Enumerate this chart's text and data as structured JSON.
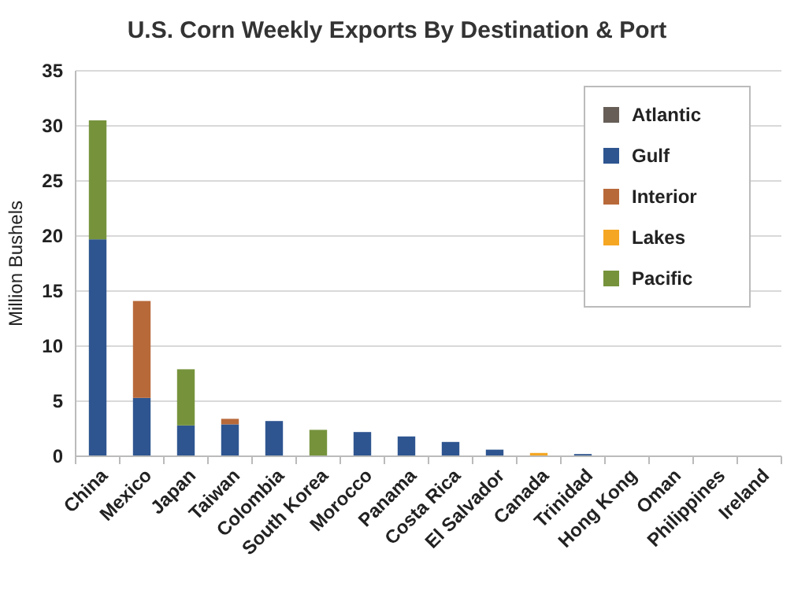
{
  "chart_data": {
    "type": "bar",
    "stacked": true,
    "title": "U.S. Corn Weekly Exports By Destination & Port",
    "ylabel": "Million Bushels",
    "categories": [
      "China",
      "Mexico",
      "Japan",
      "Taiwan",
      "Colombia",
      "South Korea",
      "Morocco",
      "Panama",
      "Costa Rica",
      "El Salvador",
      "Canada",
      "Trinidad",
      "Hong Kong",
      "Oman",
      "Philippines",
      "Ireland"
    ],
    "series": [
      {
        "name": "Atlantic",
        "color": "#665e57",
        "values": [
          0,
          0,
          0,
          0,
          0,
          0,
          0,
          0,
          0,
          0,
          0,
          0,
          0,
          0,
          0,
          0
        ]
      },
      {
        "name": "Gulf",
        "color": "#2e5590",
        "values": [
          19.7,
          5.3,
          2.8,
          2.9,
          3.2,
          0,
          2.2,
          1.8,
          1.3,
          0.6,
          0,
          0.2,
          0,
          0,
          0,
          0
        ]
      },
      {
        "name": "Interior",
        "color": "#b8693a",
        "values": [
          0,
          8.8,
          0,
          0.5,
          0,
          0,
          0,
          0,
          0,
          0,
          0,
          0,
          0,
          0,
          0,
          0
        ]
      },
      {
        "name": "Lakes",
        "color": "#f5a623",
        "values": [
          0,
          0,
          0,
          0,
          0,
          0,
          0,
          0,
          0,
          0,
          0.3,
          0,
          0,
          0,
          0,
          0
        ]
      },
      {
        "name": "Pacific",
        "color": "#76933c",
        "values": [
          10.8,
          0,
          5.1,
          0,
          0,
          2.4,
          0,
          0,
          0,
          0,
          0,
          0,
          0,
          0,
          0,
          0
        ]
      }
    ],
    "ylim": [
      0,
      35
    ],
    "yticks": [
      0,
      5,
      10,
      15,
      20,
      25,
      30,
      35
    ],
    "grid": "y",
    "legend": "top right"
  }
}
